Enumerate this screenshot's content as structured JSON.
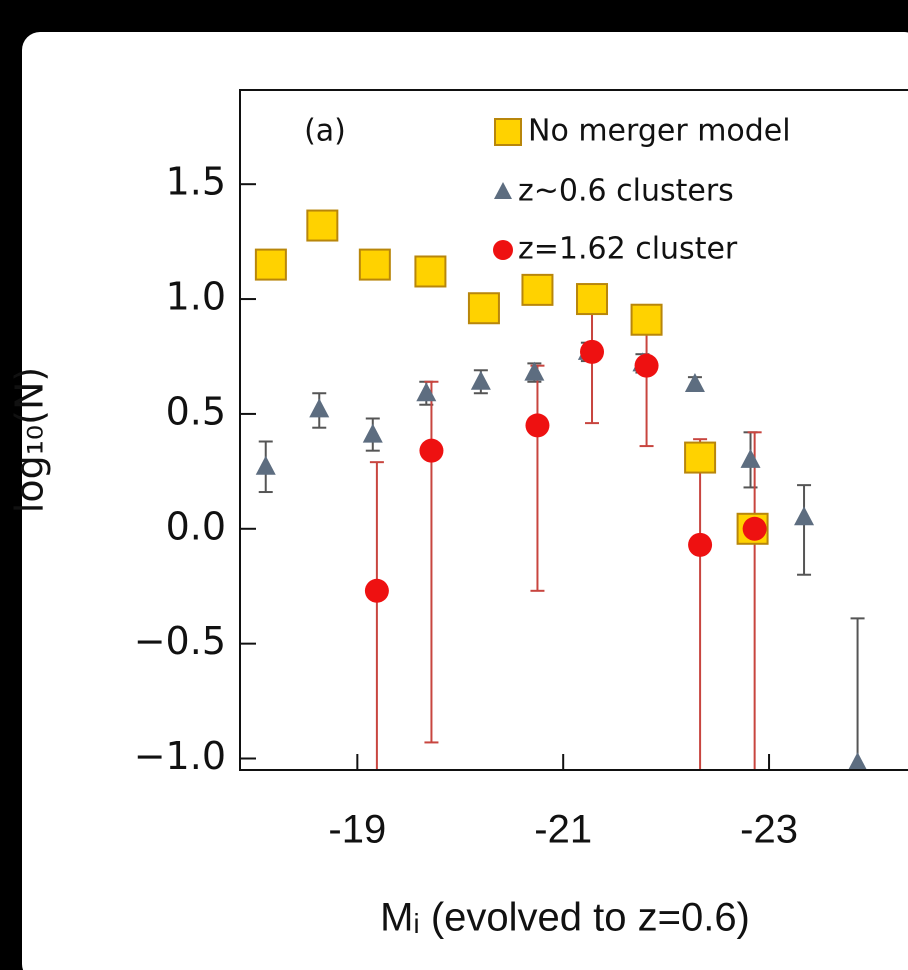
{
  "chart_data": {
    "type": "scatter",
    "panel_label": "(a)",
    "x_label": "Mᵢ (evolved to z=0.6)",
    "y_label": "log₁₀(N)",
    "xlim": [
      -17.86,
      -24.35
    ],
    "ylim": [
      -1.05,
      1.91
    ],
    "xticks": [
      -19,
      -21,
      -23
    ],
    "yticks": [
      {
        "value": -1.0,
        "label": "−1.0"
      },
      {
        "value": -0.5,
        "label": "−0.5"
      },
      {
        "value": 0.0,
        "label": "0.0"
      },
      {
        "value": 0.5,
        "label": "0.5"
      },
      {
        "value": 1.0,
        "label": "1.0"
      },
      {
        "value": 1.5,
        "label": "1.5"
      }
    ],
    "series": [
      {
        "name": "No merger model",
        "marker": "square",
        "color": "#ffd200",
        "x": [
          -18.16,
          -18.66,
          -19.17,
          -19.71,
          -20.23,
          -20.75,
          -21.28,
          -21.81,
          -22.33,
          -22.84
        ],
        "values": [
          1.15,
          1.32,
          1.15,
          1.12,
          0.96,
          1.04,
          1.0,
          0.91,
          0.31,
          0.0
        ]
      },
      {
        "name": "z~0.6 clusters",
        "marker": "triangle",
        "color": "#5d6d80",
        "error_color": "#555555",
        "x": [
          -18.11,
          -18.63,
          -19.15,
          -19.67,
          -20.2,
          -20.72,
          -21.24,
          -21.77,
          -22.28,
          -22.82,
          -23.34,
          -23.86
        ],
        "values": [
          0.27,
          0.52,
          0.41,
          0.59,
          0.64,
          0.68,
          0.77,
          0.72,
          0.63,
          0.3,
          0.05,
          -1.02
        ],
        "errors_lower": [
          0.11,
          0.08,
          0.07,
          0.05,
          0.05,
          0.04,
          0.04,
          0.04,
          0.03,
          0.12,
          0.25,
          0.1
        ],
        "errors_upper": [
          0.11,
          0.07,
          0.07,
          0.05,
          0.05,
          0.04,
          0.04,
          0.04,
          0.03,
          0.12,
          0.14,
          0.63
        ]
      },
      {
        "name": "z=1.62 cluster",
        "marker": "circle",
        "color": "#ee1111",
        "error_color": "#c8453f",
        "x": [
          -19.19,
          -19.72,
          -20.75,
          -21.28,
          -21.81,
          -22.33,
          -22.86
        ],
        "values": [
          -0.27,
          0.34,
          0.45,
          0.77,
          0.71,
          -0.07,
          0.0
        ],
        "errors_lower": [
          1.0,
          1.27,
          0.72,
          0.31,
          0.35,
          1.0,
          1.1
        ],
        "errors_upper": [
          0.56,
          0.3,
          0.26,
          0.17,
          0.19,
          0.46,
          0.42
        ]
      }
    ]
  }
}
